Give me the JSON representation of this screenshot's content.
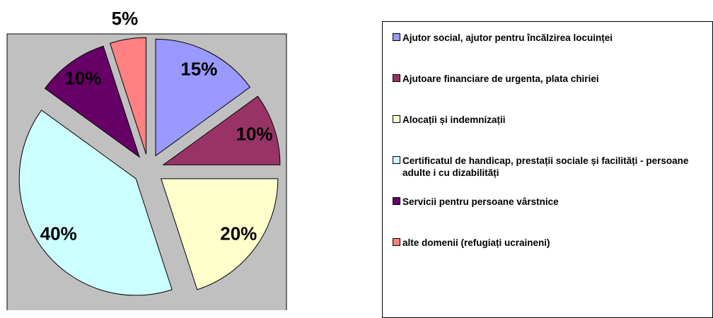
{
  "chart_data": {
    "type": "pie",
    "categories": [
      "Ajutor social, ajutor pentru încălzirea locuinței",
      "Ajutoare financiare de urgenta, plata chiriei",
      "Alocații și indemnizații",
      "Certificatul de handicap, prestații sociale și facilități - persoane adulte i cu dizabilități",
      "Servicii pentru persoane vârstnice",
      "alte domenii (refugiați ucraineni)"
    ],
    "values": [
      15,
      10,
      20,
      40,
      10,
      5
    ],
    "value_labels": [
      "15%",
      "10%",
      "20%",
      "40%",
      "10%",
      "5%"
    ],
    "colors": [
      "#9999ff",
      "#993366",
      "#ffffcc",
      "#ccffff",
      "#660066",
      "#ff8080"
    ],
    "legend": "right"
  }
}
